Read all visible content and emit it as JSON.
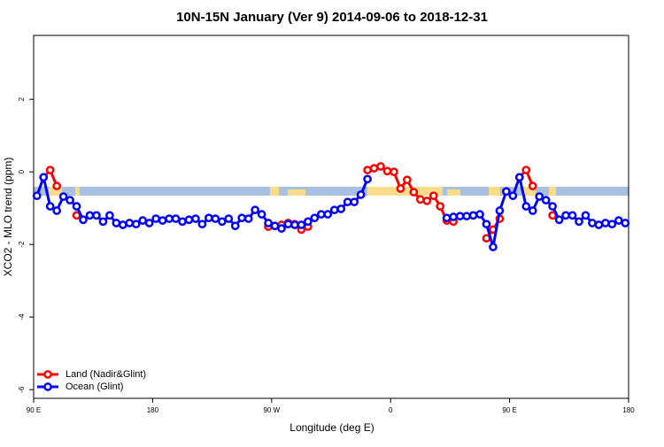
{
  "chart_data": {
    "type": "line",
    "title": "10N-15N January (Ver 9)   2014-09-06 to 2018-12-31",
    "x_label": "Longitude (deg E)",
    "y_label": "XCO2 - MLO trend (ppm)",
    "xlim": [
      90,
      540
    ],
    "ylim": [
      -6.24,
      3.76
    ],
    "xticks": [
      {
        "value": 90,
        "label": "90 E"
      },
      {
        "value": 180,
        "label": "180"
      },
      {
        "value": 270,
        "label": "90 W"
      },
      {
        "value": 360,
        "label": "0"
      },
      {
        "value": 450,
        "label": "90 E"
      },
      {
        "value": 540,
        "label": "180"
      }
    ],
    "yticks": [
      -6,
      -4,
      -2,
      0,
      2
    ],
    "legend": "bottom-left",
    "x": [
      92.5,
      97.5,
      102.5,
      107.5,
      112.5,
      117.5,
      122.5,
      127.5,
      132.5,
      137.5,
      142.5,
      147.5,
      152.5,
      157.5,
      162.5,
      167.5,
      172.5,
      177.5,
      182.5,
      187.5,
      192.5,
      197.5,
      202.5,
      207.5,
      212.5,
      217.5,
      222.5,
      227.5,
      232.5,
      237.5,
      242.5,
      247.5,
      252.5,
      257.5,
      262.5,
      267.5,
      272.5,
      277.5,
      282.5,
      287.5,
      292.5,
      297.5,
      302.5,
      307.5,
      312.5,
      317.5,
      322.5,
      327.5,
      332.5,
      337.5,
      342.5,
      347.5,
      352.5,
      357.5,
      362.5,
      367.5,
      372.5,
      377.5,
      382.5,
      387.5,
      392.5,
      397.5,
      402.5,
      407.5,
      412.5,
      417.5,
      422.5,
      427.5,
      432.5,
      437.5,
      442.5,
      447.5,
      452.5,
      457.5,
      462.5,
      467.5,
      472.5,
      477.5,
      482.5,
      487.5,
      492.5,
      497.5,
      502.5,
      507.5,
      512.5,
      517.5,
      522.5,
      527.5,
      532.5,
      537.5
    ],
    "series": [
      {
        "name": "Land (Nadir&Glint)",
        "color": "#ff0000",
        "values": [
          null,
          -0.15,
          0.05,
          -0.39,
          null,
          null,
          -1.2,
          null,
          null,
          null,
          null,
          null,
          null,
          null,
          null,
          null,
          null,
          null,
          null,
          null,
          null,
          null,
          null,
          null,
          null,
          null,
          null,
          null,
          null,
          null,
          null,
          null,
          null,
          null,
          null,
          -1.51,
          -1.49,
          -1.46,
          -1.41,
          -1.44,
          -1.59,
          -1.51,
          null,
          null,
          null,
          null,
          null,
          null,
          null,
          null,
          0.05,
          0.1,
          0.15,
          0.02,
          0,
          -0.46,
          -0.22,
          -0.56,
          -0.76,
          -0.8,
          -0.66,
          -0.95,
          -1.34,
          -1.37,
          null,
          null,
          null,
          null,
          -1.83,
          -1.59,
          -1.29,
          null,
          null,
          -0.15,
          0.05,
          -0.39,
          null,
          null,
          -1.2,
          null,
          null,
          null,
          null,
          null,
          null,
          null,
          null,
          null,
          null,
          null
        ]
      },
      {
        "name": "Ocean (Glint)",
        "color": "#0000ff",
        "values": [
          -0.66,
          -0.15,
          -0.95,
          -1.07,
          -0.68,
          -0.78,
          -0.95,
          -1.32,
          -1.2,
          -1.2,
          -1.37,
          -1.2,
          -1.41,
          -1.46,
          -1.41,
          -1.44,
          -1.34,
          -1.41,
          -1.29,
          -1.34,
          -1.29,
          -1.29,
          -1.37,
          -1.32,
          -1.29,
          -1.44,
          -1.27,
          -1.29,
          -1.37,
          -1.29,
          -1.49,
          -1.27,
          -1.29,
          -1.05,
          -1.17,
          -1.41,
          -1.49,
          -1.56,
          -1.44,
          -1.46,
          -1.46,
          -1.37,
          -1.27,
          -1.17,
          -1.17,
          -1.05,
          -1.02,
          -0.83,
          -0.83,
          -0.63,
          -0.2,
          null,
          null,
          null,
          null,
          null,
          null,
          null,
          null,
          null,
          null,
          null,
          -1.27,
          -1.24,
          -1.22,
          -1.22,
          -1.2,
          -1.17,
          -1.44,
          -2.07,
          -1.07,
          -0.54,
          -0.66,
          -0.15,
          -0.95,
          -1.07,
          -0.68,
          -0.78,
          -0.95,
          -1.32,
          -1.2,
          -1.2,
          -1.37,
          -1.2,
          -1.41,
          -1.46,
          -1.41,
          -1.44,
          -1.34,
          -1.41
        ]
      }
    ]
  }
}
